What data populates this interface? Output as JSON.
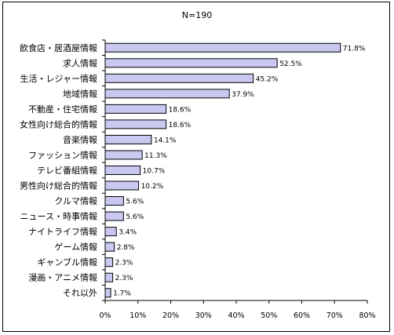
{
  "chart_data": {
    "type": "bar",
    "orientation": "horizontal",
    "title": "N=190",
    "categories": [
      "飲食店・居酒屋情報",
      "求人情報",
      "生活・レジャー情報",
      "地域情報",
      "不動産・住宅情報",
      "女性向け総合的情報",
      "音楽情報",
      "ファッション情報",
      "テレビ番組情報",
      "男性向け総合的情報",
      "クルマ情報",
      "ニュース・時事情報",
      "ナイトライフ情報",
      "ゲーム情報",
      "ギャンブル情報",
      "漫画・アニメ情報",
      "それ以外"
    ],
    "values": [
      71.8,
      52.5,
      45.2,
      37.9,
      18.6,
      18.6,
      14.1,
      11.3,
      10.7,
      10.2,
      5.6,
      5.6,
      3.4,
      2.8,
      2.3,
      2.3,
      1.7
    ],
    "value_labels": [
      "71.8%",
      "52.5%",
      "45.2%",
      "37.9%",
      "18.6%",
      "18.6%",
      "14.1%",
      "11.3%",
      "10.7%",
      "10.2%",
      "5.6%",
      "5.6%",
      "3.4%",
      "2.8%",
      "2.3%",
      "2.3%",
      "1.7%"
    ],
    "xlim": [
      0,
      80
    ],
    "x_ticks": [
      0,
      10,
      20,
      30,
      40,
      50,
      60,
      70,
      80
    ],
    "x_tick_labels": [
      "0%",
      "10%",
      "20%",
      "30%",
      "40%",
      "50%",
      "60%",
      "70%",
      "80%"
    ],
    "bar_color": "#c8c8f0",
    "bar_border_color": "#000000",
    "grid": false,
    "legend": "none"
  }
}
